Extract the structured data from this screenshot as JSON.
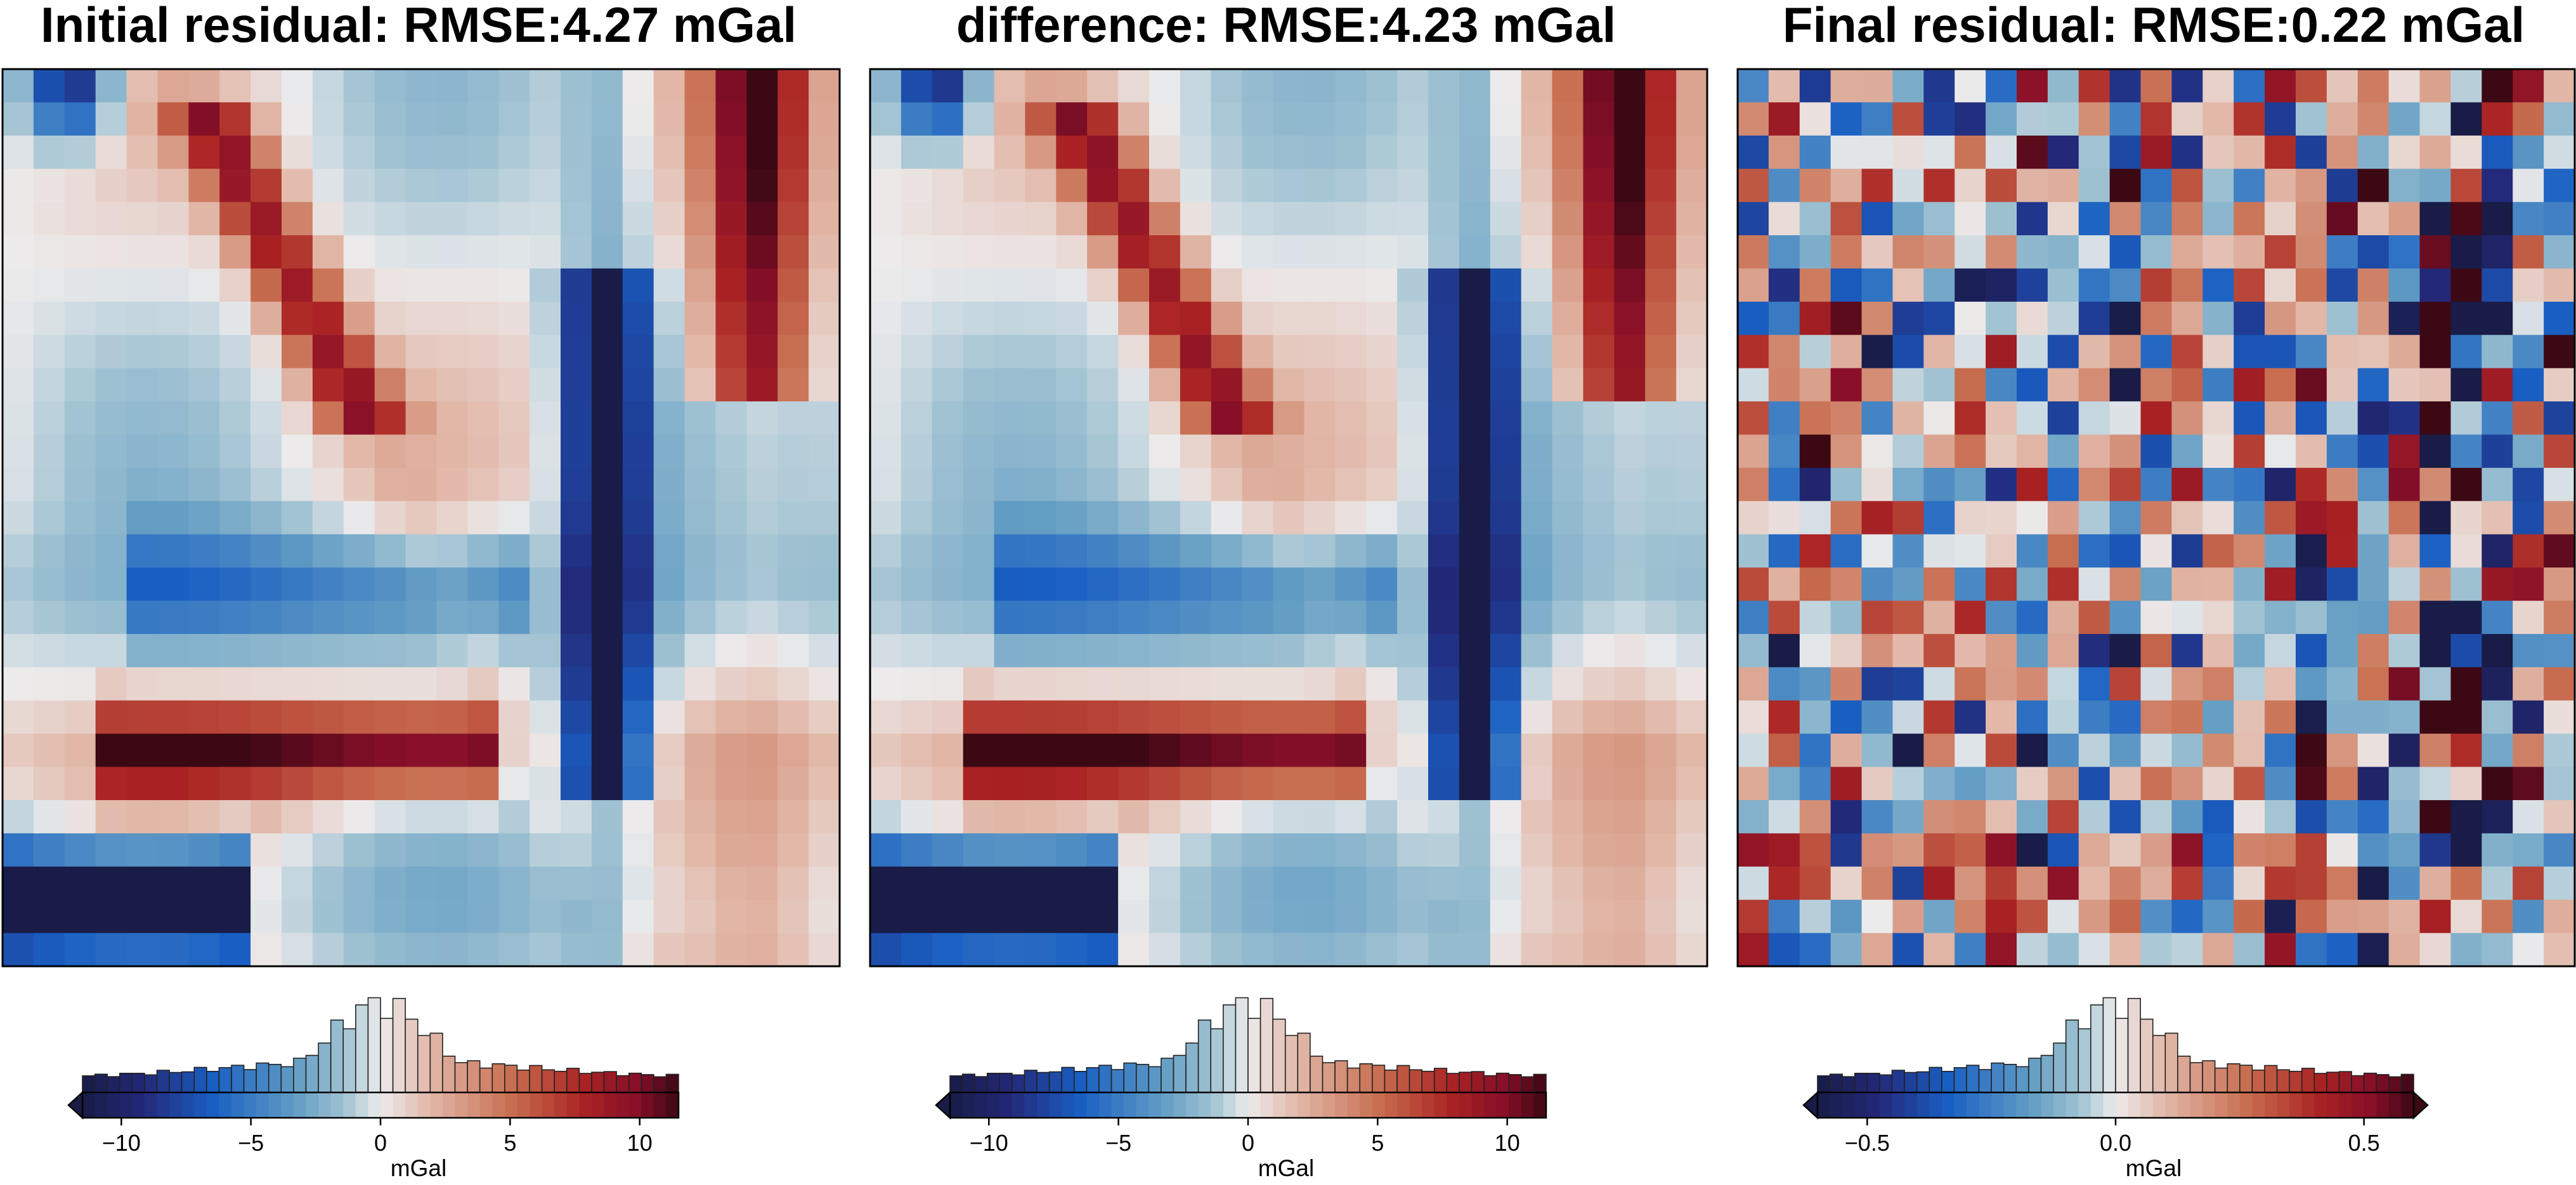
{
  "chart_data": [
    {
      "type": "heatmap",
      "title": "Initial residual: RMSE:4.27 mGal",
      "grid": false,
      "pattern": "smooth",
      "colormap": "vik",
      "colorbar": {
        "label": "mGal",
        "range": [
          -11.5,
          11.5
        ],
        "ticks": [
          -10,
          -5,
          0,
          5,
          10
        ],
        "tick_labels": [
          "−10",
          "−5",
          "0",
          "5",
          "10"
        ],
        "extend": "min",
        "histogram": true
      }
    },
    {
      "type": "heatmap",
      "title": "difference: RMSE:4.23 mGal",
      "grid": false,
      "pattern": "smooth",
      "colormap": "vik",
      "colorbar": {
        "label": "mGal",
        "range": [
          -11.5,
          11.5
        ],
        "ticks": [
          -10,
          -5,
          0,
          5,
          10
        ],
        "tick_labels": [
          "−10",
          "−5",
          "0",
          "5",
          "10"
        ],
        "extend": "min",
        "histogram": true
      }
    },
    {
      "type": "heatmap",
      "title": "Final residual: RMSE:0.22 mGal",
      "grid": false,
      "pattern": "noise",
      "colormap": "vik",
      "colorbar": {
        "label": "mGal",
        "range": [
          -0.6,
          0.6
        ],
        "ticks": [
          -0.5,
          0.0,
          0.5
        ],
        "tick_labels": [
          "−0.5",
          "0.0",
          "0.5"
        ],
        "extend": "both",
        "histogram": true
      }
    }
  ]
}
